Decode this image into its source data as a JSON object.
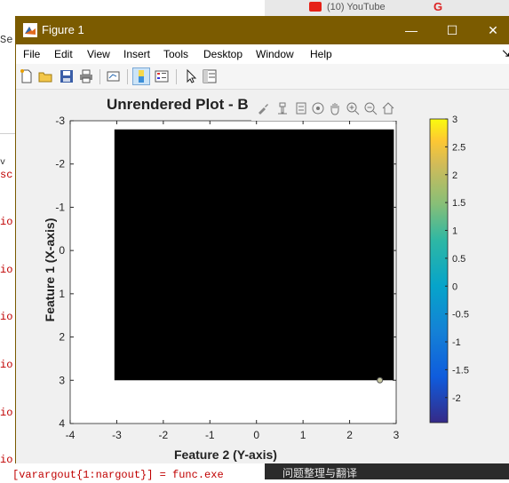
{
  "background": {
    "left_fragments": [
      "Se",
      "v",
      "sc",
      "io",
      "io",
      "io",
      "io",
      "io",
      "io"
    ],
    "bottom_code": "[varargout{1:nargout}] = func.exe",
    "browser_tab_text": "(10) YouTube",
    "browser_bottom_text": "问题整理与翻译"
  },
  "window": {
    "title": "Figure 1",
    "minimize": "—",
    "maximize": "☐",
    "close": "✕"
  },
  "menu": [
    "File",
    "Edit",
    "View",
    "Insert",
    "Tools",
    "Desktop",
    "Window",
    "Help"
  ],
  "toolbar": {
    "icons": [
      "new-figure-icon",
      "open-file-icon",
      "save-icon",
      "print-icon",
      "link-plot-icon",
      "colorbar-toggle-icon",
      "legend-toggle-icon",
      "pointer-icon",
      "property-inspector-icon"
    ]
  },
  "chart_data": {
    "type": "heatmap",
    "title": "Unrendered Plot - B",
    "xlabel": "Feature 2 (Y-axis)",
    "ylabel": "Feature 1 (X-axis)",
    "xlim": [
      -4,
      3
    ],
    "ylim": [
      -3,
      4
    ],
    "y_reversed": true,
    "x_ticks": [
      "-4",
      "-3",
      "-2",
      "-1",
      "0",
      "1",
      "2",
      "3"
    ],
    "y_ticks": [
      "-3",
      "-2",
      "-1",
      "0",
      "1",
      "2",
      "3",
      "4"
    ],
    "image_extent": {
      "x": [
        -3.05,
        2.95
      ],
      "y": [
        -2.8,
        3.0
      ]
    },
    "image_color": "#000000",
    "points": [
      {
        "x": 2.65,
        "y": 3.0
      }
    ],
    "colorbar": {
      "ticks": [
        "3",
        "2.5",
        "2",
        "1.5",
        "1",
        "0.5",
        "0",
        "-0.5",
        "-1",
        "-1.5",
        "-2"
      ],
      "range": [
        -2.45,
        3.0
      ],
      "colormap": "parula"
    }
  }
}
